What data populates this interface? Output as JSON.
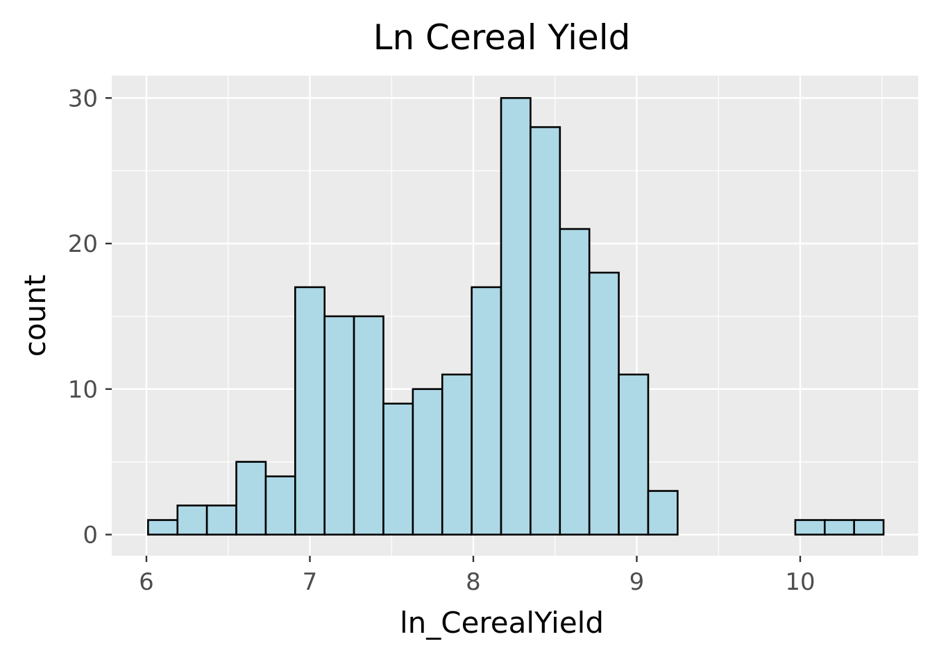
{
  "chart_data": {
    "type": "bar",
    "title": "Ln Cereal Yield",
    "xlabel": "ln_CerealYield",
    "ylabel": "count",
    "xlim": [
      5.79,
      10.72
    ],
    "ylim": [
      0,
      31.5
    ],
    "x_ticks": [
      6,
      7,
      8,
      9,
      10
    ],
    "y_ticks": [
      0,
      10,
      20,
      30
    ],
    "bin_width": 0.18,
    "bin_starts": [
      6.01,
      6.19,
      6.37,
      6.55,
      6.73,
      6.91,
      7.09,
      7.27,
      7.45,
      7.63,
      7.81,
      7.99,
      8.17,
      8.35,
      8.53,
      8.71,
      8.89,
      9.07,
      9.25,
      9.43,
      9.61,
      9.79,
      9.97,
      10.15,
      10.33
    ],
    "values": [
      1,
      2,
      2,
      5,
      4,
      17,
      15,
      15,
      9,
      10,
      11,
      17,
      30,
      28,
      21,
      18,
      11,
      3,
      0,
      0,
      0,
      0,
      1,
      1,
      1
    ],
    "grid": true,
    "colors": {
      "panel_bg": "#EBEBEB",
      "grid_major": "#FFFFFF",
      "bar_fill": "#ADD8E6",
      "bar_stroke": "#000000",
      "tick_text": "#4D4D4D",
      "title_text": "#000000"
    }
  }
}
